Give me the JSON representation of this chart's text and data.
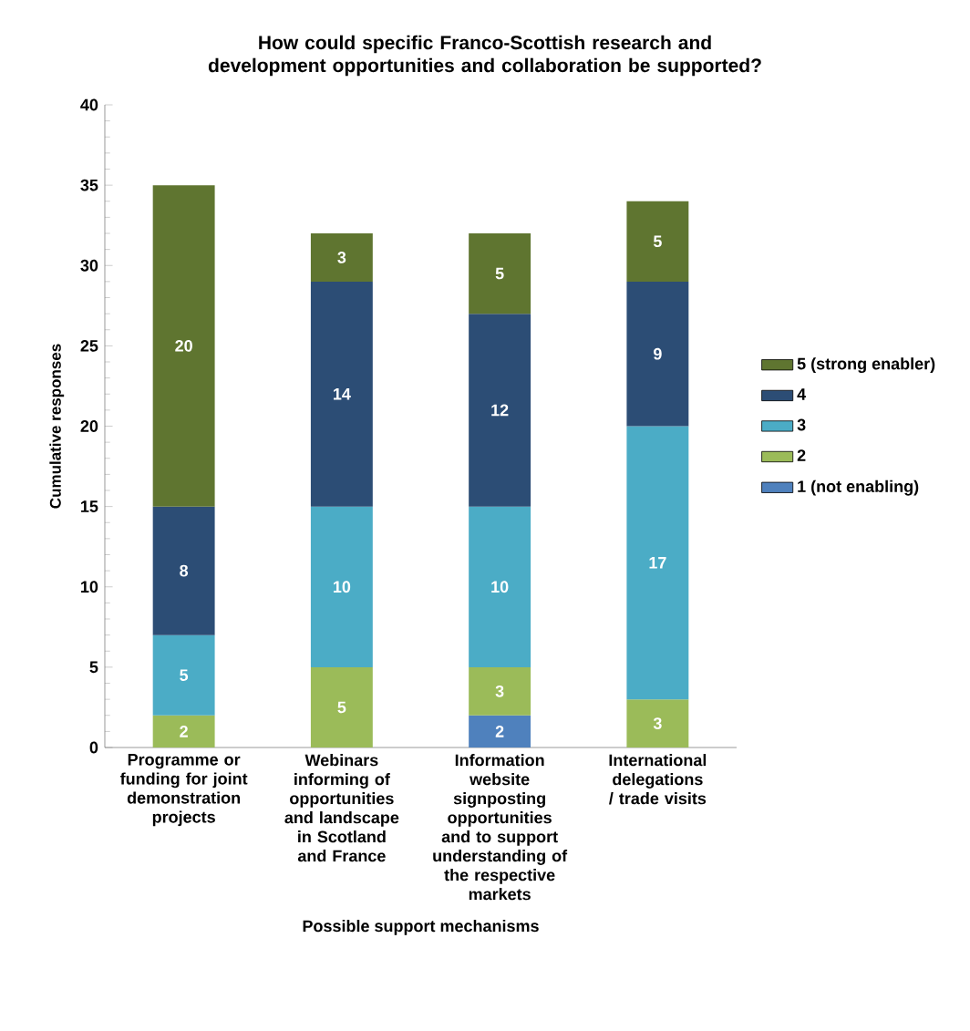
{
  "chart_data": {
    "type": "bar",
    "stacked": true,
    "title": "How could specific Franco-Scottish research and development opportunities and collaboration be supported?",
    "xlabel": "Possible support mechanisms",
    "ylabel": "Cumulative responses",
    "categories": [
      "Programme or funding for joint demonstration projects",
      "Webinars informing of opportunities and landscape in Scotland and France",
      "Information website signposting opportunities and to support understanding of the respective markets",
      "International delegations / trade visits"
    ],
    "series": [
      {
        "name": "1 (not enabling)",
        "color": "#4f81bd",
        "values": [
          null,
          null,
          2,
          null
        ]
      },
      {
        "name": "2",
        "color": "#9bbb59",
        "values": [
          2,
          5,
          3,
          3
        ]
      },
      {
        "name": "3",
        "color": "#4bacc6",
        "values": [
          5,
          10,
          10,
          17
        ]
      },
      {
        "name": "4",
        "color": "#2c4d75",
        "values": [
          8,
          14,
          12,
          9
        ]
      },
      {
        "name": "5 (strong enabler)",
        "color": "#5f7530",
        "values": [
          20,
          3,
          5,
          5
        ]
      }
    ],
    "ylim": [
      0,
      40
    ],
    "yticks": [
      0,
      5,
      10,
      15,
      20,
      25,
      30,
      35,
      40
    ],
    "data_labels": true,
    "legend": "right",
    "grid": false
  }
}
